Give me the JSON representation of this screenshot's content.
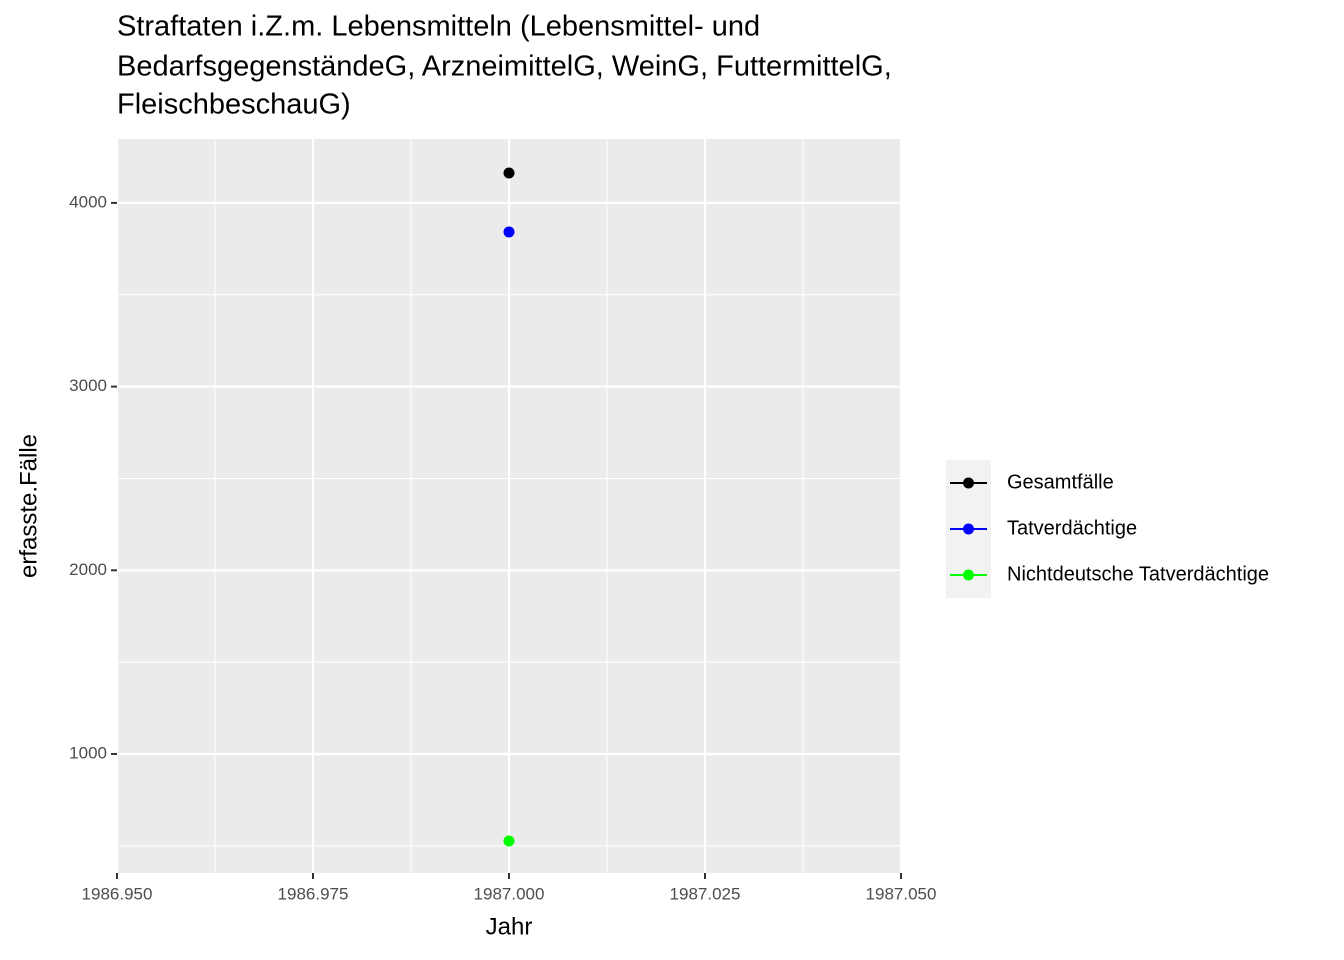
{
  "chart_data": {
    "type": "scatter",
    "title": [
      "Straftaten i.Z.m. Lebensmitteln (Lebensmittel- und",
      "BedarfsgegenständeG, ArzneimittelG, WeinG, FuttermittelG,",
      "FleischbeschauG)"
    ],
    "x_label": "Jahr",
    "y_label": "erfasste.Fälle",
    "x": [
      1987
    ],
    "series": [
      {
        "name": "Gesamtfälle",
        "color": "#000000",
        "values": [
          4163
        ]
      },
      {
        "name": "Tatverdächtige",
        "color": "#0000ff",
        "values": [
          3842
        ]
      },
      {
        "name": "Nichtdeutsche Tatverdächtige",
        "color": "#00ff00",
        "values": [
          526
        ]
      }
    ],
    "xlim": [
      1986.95,
      1987.05
    ],
    "xticks": [
      {
        "value": 1986.95,
        "label": "1986.950"
      },
      {
        "value": 1986.975,
        "label": "1986.975"
      },
      {
        "value": 1987,
        "label": "1987.000"
      },
      {
        "value": 1987.025,
        "label": "1987.025"
      },
      {
        "value": 1987.05,
        "label": "1987.050"
      }
    ],
    "ylim": [
      352,
      4348
    ],
    "yticks": [
      1000,
      2000,
      3000,
      4000
    ],
    "grid": true,
    "legend": "right"
  }
}
